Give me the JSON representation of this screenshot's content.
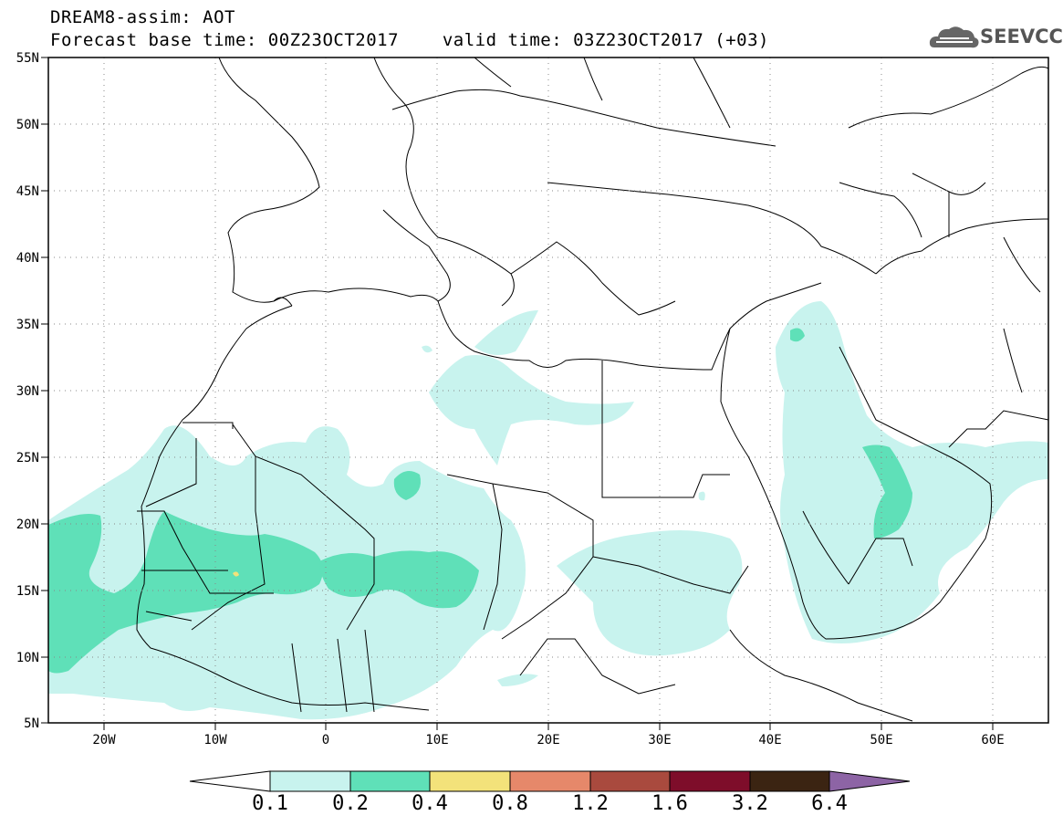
{
  "header": {
    "title_line1": "DREAM8-assim: AOT",
    "base_time": "Forecast base time: 00Z23OCT2017",
    "valid_time": "valid time: 03Z23OCT2017 (+03)"
  },
  "logo": {
    "text": "SEEVCCC",
    "icon": "cloud-icon"
  },
  "map": {
    "variable": "AOT",
    "lat_range": [
      5,
      55
    ],
    "lon_range": [
      -25,
      65
    ],
    "lat_ticks": [
      "55N",
      "50N",
      "45N",
      "40N",
      "35N",
      "30N",
      "25N",
      "20N",
      "15N",
      "10N",
      "5N"
    ],
    "lon_ticks": [
      "20W",
      "10W",
      "0",
      "10E",
      "20E",
      "30E",
      "40E",
      "50E",
      "60E"
    ],
    "grid": "dotted"
  },
  "colorbar": {
    "labels": [
      "0.1",
      "0.2",
      "0.4",
      "0.8",
      "1.2",
      "1.6",
      "3.2",
      "6.4"
    ],
    "colors": [
      "#ffffff",
      "#c8f3ee",
      "#5fe0b8",
      "#f3e27a",
      "#e6886a",
      "#a94a3e",
      "#7e0d2a",
      "#3b2412",
      "#8d64a5"
    ]
  }
}
